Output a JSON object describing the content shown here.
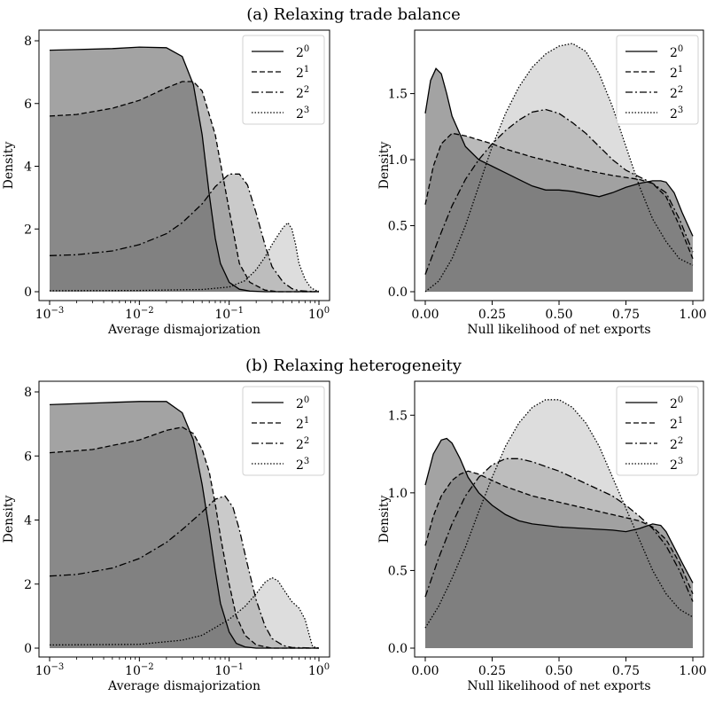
{
  "figure": {
    "panel_a_title": "(a) Relaxing trade balance",
    "panel_b_title": "(b) Relaxing heterogeneity"
  },
  "chart_data": [
    {
      "id": "a-left",
      "type": "area",
      "xscale": "log",
      "xlim": [
        0.001,
        1
      ],
      "ylim": [
        0,
        8
      ],
      "xlabel": "Average dismajorization",
      "ylabel": "Density",
      "xticks": [
        "10^-3",
        "10^-2",
        "10^-1",
        "10^0"
      ],
      "yticks": [
        "0",
        "2",
        "4",
        "6",
        "8"
      ],
      "legend_position": "top-right",
      "series": [
        {
          "name": "2^0",
          "line": "solid",
          "x": [
            0.001,
            0.002,
            0.005,
            0.01,
            0.02,
            0.03,
            0.04,
            0.05,
            0.06,
            0.07,
            0.08,
            0.1,
            0.13,
            0.17,
            0.25,
            1
          ],
          "y": [
            7.7,
            7.72,
            7.75,
            7.8,
            7.78,
            7.5,
            6.6,
            5.0,
            3.1,
            1.7,
            0.9,
            0.3,
            0.08,
            0.02,
            0,
            0
          ]
        },
        {
          "name": "2^1",
          "line": "dashed",
          "x": [
            0.001,
            0.002,
            0.005,
            0.01,
            0.02,
            0.03,
            0.04,
            0.05,
            0.07,
            0.1,
            0.13,
            0.17,
            0.25,
            0.35,
            0.5,
            1
          ],
          "y": [
            5.6,
            5.65,
            5.85,
            6.1,
            6.5,
            6.7,
            6.7,
            6.4,
            5.0,
            2.6,
            0.9,
            0.3,
            0.05,
            0,
            0,
            0
          ]
        },
        {
          "name": "2^2",
          "line": "dashdot",
          "x": [
            0.001,
            0.002,
            0.005,
            0.01,
            0.02,
            0.03,
            0.05,
            0.07,
            0.1,
            0.13,
            0.16,
            0.2,
            0.25,
            0.3,
            0.4,
            0.5,
            0.6,
            1
          ],
          "y": [
            1.15,
            1.18,
            1.3,
            1.5,
            1.85,
            2.2,
            2.8,
            3.35,
            3.75,
            3.75,
            3.4,
            2.5,
            1.5,
            0.8,
            0.3,
            0.1,
            0.03,
            0
          ]
        },
        {
          "name": "2^3",
          "line": "dotted",
          "x": [
            0.001,
            0.01,
            0.05,
            0.1,
            0.15,
            0.2,
            0.25,
            0.3,
            0.35,
            0.4,
            0.45,
            0.5,
            0.55,
            0.6,
            0.7,
            0.8,
            0.9,
            1
          ],
          "y": [
            0.03,
            0.04,
            0.07,
            0.15,
            0.35,
            0.7,
            1.1,
            1.5,
            1.8,
            2.05,
            2.2,
            2.0,
            1.5,
            0.9,
            0.4,
            0.15,
            0.05,
            0.02
          ]
        }
      ]
    },
    {
      "id": "a-right",
      "type": "area",
      "xscale": "linear",
      "xlim": [
        0,
        1
      ],
      "ylim": [
        0,
        1.9
      ],
      "xlabel": "Null likelihood of net exports",
      "ylabel": "Density",
      "xticks": [
        "0.00",
        "0.25",
        "0.50",
        "0.75",
        "1.00"
      ],
      "yticks": [
        "0.0",
        "0.5",
        "1.0",
        "1.5"
      ],
      "legend_position": "top-right",
      "series": [
        {
          "name": "2^0",
          "line": "solid",
          "x": [
            0,
            0.02,
            0.04,
            0.06,
            0.08,
            0.1,
            0.15,
            0.2,
            0.25,
            0.3,
            0.35,
            0.4,
            0.45,
            0.5,
            0.55,
            0.6,
            0.65,
            0.7,
            0.75,
            0.8,
            0.85,
            0.88,
            0.9,
            0.93,
            0.96,
            1.0
          ],
          "y": [
            1.35,
            1.6,
            1.69,
            1.65,
            1.5,
            1.33,
            1.1,
            1.0,
            0.95,
            0.9,
            0.85,
            0.8,
            0.77,
            0.77,
            0.76,
            0.74,
            0.72,
            0.75,
            0.79,
            0.82,
            0.84,
            0.84,
            0.83,
            0.75,
            0.6,
            0.42
          ]
        },
        {
          "name": "2^1",
          "line": "dashed",
          "x": [
            0,
            0.03,
            0.06,
            0.1,
            0.15,
            0.2,
            0.25,
            0.3,
            0.4,
            0.5,
            0.6,
            0.7,
            0.8,
            0.85,
            0.9,
            0.95,
            1.0
          ],
          "y": [
            0.66,
            0.95,
            1.12,
            1.2,
            1.18,
            1.15,
            1.12,
            1.08,
            1.02,
            0.97,
            0.92,
            0.88,
            0.85,
            0.82,
            0.72,
            0.5,
            0.25
          ]
        },
        {
          "name": "2^2",
          "line": "dashdot",
          "x": [
            0,
            0.05,
            0.1,
            0.15,
            0.2,
            0.25,
            0.3,
            0.35,
            0.4,
            0.45,
            0.5,
            0.55,
            0.6,
            0.65,
            0.7,
            0.75,
            0.8,
            0.85,
            0.9,
            0.95,
            1.0
          ],
          "y": [
            0.13,
            0.4,
            0.65,
            0.85,
            1.0,
            1.12,
            1.22,
            1.3,
            1.36,
            1.38,
            1.35,
            1.28,
            1.2,
            1.1,
            1.0,
            0.92,
            0.87,
            0.82,
            0.75,
            0.55,
            0.3
          ]
        },
        {
          "name": "2^3",
          "line": "dotted",
          "x": [
            0,
            0.05,
            0.1,
            0.15,
            0.2,
            0.25,
            0.3,
            0.35,
            0.4,
            0.45,
            0.5,
            0.55,
            0.6,
            0.65,
            0.7,
            0.75,
            0.8,
            0.85,
            0.9,
            0.95,
            1.0
          ],
          "y": [
            0.0,
            0.08,
            0.25,
            0.5,
            0.8,
            1.1,
            1.35,
            1.55,
            1.7,
            1.8,
            1.86,
            1.88,
            1.82,
            1.65,
            1.4,
            1.1,
            0.8,
            0.55,
            0.38,
            0.25,
            0.2
          ]
        }
      ]
    },
    {
      "id": "b-left",
      "type": "area",
      "xscale": "log",
      "xlim": [
        0.001,
        1
      ],
      "ylim": [
        0,
        8
      ],
      "xlabel": "Average dismajorization",
      "ylabel": "Density",
      "xticks": [
        "10^-3",
        "10^-2",
        "10^-1",
        "10^0"
      ],
      "yticks": [
        "0",
        "2",
        "4",
        "6",
        "8"
      ],
      "legend_position": "top-right",
      "series": [
        {
          "name": "2^0",
          "line": "solid",
          "x": [
            0.001,
            0.003,
            0.01,
            0.02,
            0.03,
            0.04,
            0.05,
            0.06,
            0.07,
            0.08,
            0.1,
            0.12,
            0.15,
            0.2,
            1
          ],
          "y": [
            7.6,
            7.65,
            7.7,
            7.7,
            7.35,
            6.5,
            5.1,
            3.7,
            2.4,
            1.4,
            0.5,
            0.15,
            0.04,
            0,
            0
          ]
        },
        {
          "name": "2^1",
          "line": "dashed",
          "x": [
            0.001,
            0.003,
            0.01,
            0.02,
            0.03,
            0.04,
            0.05,
            0.06,
            0.07,
            0.08,
            0.1,
            0.12,
            0.15,
            0.2,
            0.3,
            1
          ],
          "y": [
            6.1,
            6.2,
            6.5,
            6.8,
            6.9,
            6.7,
            6.2,
            5.5,
            4.5,
            3.5,
            2.0,
            1.0,
            0.4,
            0.1,
            0,
            0
          ]
        },
        {
          "name": "2^2",
          "line": "dashdot",
          "x": [
            0.001,
            0.002,
            0.005,
            0.01,
            0.02,
            0.03,
            0.05,
            0.07,
            0.09,
            0.11,
            0.13,
            0.16,
            0.2,
            0.25,
            0.3,
            0.4,
            0.5,
            1
          ],
          "y": [
            2.25,
            2.3,
            2.5,
            2.8,
            3.3,
            3.7,
            4.25,
            4.65,
            4.75,
            4.4,
            3.7,
            2.6,
            1.5,
            0.7,
            0.3,
            0.08,
            0.02,
            0
          ]
        },
        {
          "name": "2^3",
          "line": "dotted",
          "x": [
            0.001,
            0.01,
            0.03,
            0.05,
            0.1,
            0.15,
            0.2,
            0.25,
            0.3,
            0.35,
            0.4,
            0.5,
            0.6,
            0.7,
            0.8,
            0.85,
            1
          ],
          "y": [
            0.1,
            0.12,
            0.25,
            0.4,
            0.9,
            1.3,
            1.7,
            2.05,
            2.2,
            2.1,
            1.85,
            1.45,
            1.25,
            0.9,
            0.3,
            0.05,
            0
          ]
        }
      ]
    },
    {
      "id": "b-right",
      "type": "area",
      "xscale": "linear",
      "xlim": [
        0,
        1
      ],
      "ylim": [
        0,
        1.65
      ],
      "xlabel": "Null likelihood of net exports",
      "ylabel": "Density",
      "xticks": [
        "0.00",
        "0.25",
        "0.50",
        "0.75",
        "1.00"
      ],
      "yticks": [
        "0.0",
        "0.5",
        "1.0",
        "1.5"
      ],
      "legend_position": "top-right",
      "series": [
        {
          "name": "2^0",
          "line": "solid",
          "x": [
            0,
            0.03,
            0.06,
            0.08,
            0.1,
            0.13,
            0.16,
            0.2,
            0.25,
            0.3,
            0.35,
            0.4,
            0.5,
            0.6,
            0.7,
            0.75,
            0.8,
            0.85,
            0.88,
            0.9,
            0.93,
            0.96,
            1.0
          ],
          "y": [
            1.05,
            1.25,
            1.34,
            1.35,
            1.32,
            1.22,
            1.1,
            1.0,
            0.92,
            0.86,
            0.82,
            0.8,
            0.78,
            0.77,
            0.76,
            0.75,
            0.77,
            0.8,
            0.79,
            0.75,
            0.65,
            0.55,
            0.42
          ]
        },
        {
          "name": "2^1",
          "line": "dashed",
          "x": [
            0,
            0.03,
            0.06,
            0.1,
            0.13,
            0.16,
            0.2,
            0.25,
            0.3,
            0.4,
            0.5,
            0.6,
            0.7,
            0.8,
            0.85,
            0.9,
            0.95,
            1.0
          ],
          "y": [
            0.66,
            0.85,
            0.98,
            1.08,
            1.12,
            1.14,
            1.12,
            1.08,
            1.04,
            0.98,
            0.94,
            0.9,
            0.86,
            0.82,
            0.78,
            0.7,
            0.55,
            0.35
          ]
        },
        {
          "name": "2^2",
          "line": "dashdot",
          "x": [
            0,
            0.05,
            0.1,
            0.15,
            0.2,
            0.25,
            0.3,
            0.35,
            0.4,
            0.45,
            0.5,
            0.55,
            0.6,
            0.7,
            0.75,
            0.8,
            0.85,
            0.9,
            0.95,
            1.0
          ],
          "y": [
            0.33,
            0.58,
            0.8,
            0.98,
            1.1,
            1.18,
            1.22,
            1.22,
            1.2,
            1.17,
            1.14,
            1.1,
            1.06,
            0.98,
            0.92,
            0.85,
            0.77,
            0.66,
            0.5,
            0.3
          ]
        },
        {
          "name": "2^3",
          "line": "dotted",
          "x": [
            0,
            0.05,
            0.1,
            0.15,
            0.2,
            0.25,
            0.3,
            0.35,
            0.4,
            0.45,
            0.5,
            0.55,
            0.6,
            0.65,
            0.7,
            0.75,
            0.8,
            0.85,
            0.9,
            0.95,
            1.0
          ],
          "y": [
            0.13,
            0.27,
            0.45,
            0.65,
            0.88,
            1.1,
            1.3,
            1.45,
            1.55,
            1.6,
            1.6,
            1.55,
            1.45,
            1.3,
            1.1,
            0.9,
            0.7,
            0.5,
            0.35,
            0.25,
            0.2
          ]
        }
      ]
    }
  ]
}
